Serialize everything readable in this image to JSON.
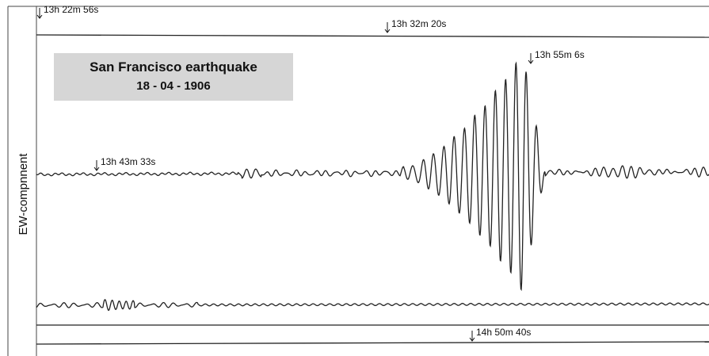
{
  "title": "San Francisco earthquake",
  "date": "18 - 04 - 1906",
  "component_label": "EW-compnnent",
  "time_marks": [
    "13h 22m 56s",
    "13h 32m 20s",
    "13h 55m 6s",
    "13h 43m 33s",
    "14h 50m 40s"
  ]
}
